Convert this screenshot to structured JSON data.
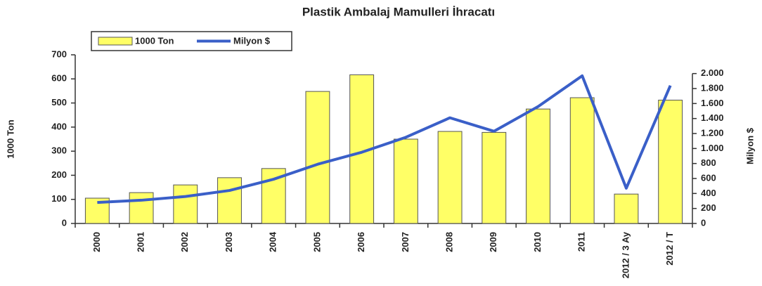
{
  "chart_data": {
    "type": "bar",
    "title": "Plastik Ambalaj Mamulleri İhracatı",
    "categories": [
      "2000",
      "2001",
      "2002",
      "2003",
      "2004",
      "2005",
      "2006",
      "2007",
      "2008",
      "2009",
      "2010",
      "2011",
      "2012 / 3 Ay",
      "2012 / T"
    ],
    "series": [
      {
        "name": "1000 Ton",
        "type": "bar",
        "color": "#ffff66",
        "values": [
          105,
          128,
          160,
          190,
          228,
          548,
          617,
          350,
          382,
          378,
          475,
          522,
          122,
          512
        ]
      },
      {
        "name": "Milyon $",
        "type": "line",
        "axis": "y2",
        "color": "#3a5fc8",
        "values": [
          280,
          310,
          360,
          440,
          590,
          790,
          950,
          1150,
          1410,
          1230,
          1560,
          1970,
          470,
          1840
        ]
      }
    ],
    "ylabel": "1000 Ton",
    "y2label": "Milyon $",
    "ylim": [
      0,
      700
    ],
    "yticks": [
      0,
      100,
      200,
      300,
      400,
      500,
      600,
      700
    ],
    "y2lim": [
      0,
      2250
    ],
    "y2ticks": [
      0,
      200,
      400,
      600,
      800,
      {
        "value": 1000,
        "label": "1.000"
      },
      {
        "value": 1200,
        "label": "1.200"
      },
      {
        "value": 1400,
        "label": "1.400"
      },
      {
        "value": 1600,
        "label": "1.600"
      },
      {
        "value": 1800,
        "label": "1.800"
      },
      {
        "value": 2000,
        "label": "2.000"
      }
    ],
    "legend": "top-left"
  }
}
